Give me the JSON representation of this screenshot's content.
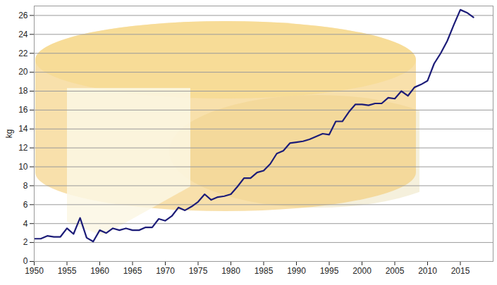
{
  "chart_data": {
    "type": "line",
    "y_label": "kg",
    "x": [
      1950,
      1951,
      1952,
      1953,
      1954,
      1955,
      1956,
      1957,
      1958,
      1959,
      1960,
      1961,
      1962,
      1963,
      1964,
      1965,
      1966,
      1967,
      1968,
      1969,
      1970,
      1971,
      1972,
      1973,
      1974,
      1975,
      1976,
      1977,
      1978,
      1979,
      1980,
      1981,
      1982,
      1983,
      1984,
      1985,
      1986,
      1987,
      1988,
      1989,
      1990,
      1991,
      1992,
      1993,
      1994,
      1995,
      1996,
      1997,
      1998,
      1999,
      2000,
      2001,
      2002,
      2003,
      2004,
      2005,
      2006,
      2007,
      2008,
      2009,
      2010,
      2011,
      2012,
      2013,
      2014,
      2015,
      2016,
      2017
    ],
    "values": [
      2.4,
      2.4,
      2.7,
      2.6,
      2.6,
      3.5,
      2.9,
      4.6,
      2.5,
      2.1,
      3.3,
      3.0,
      3.5,
      3.3,
      3.5,
      3.3,
      3.3,
      3.6,
      3.6,
      4.5,
      4.3,
      4.8,
      5.7,
      5.4,
      5.8,
      6.3,
      7.1,
      6.5,
      6.8,
      6.9,
      7.1,
      7.9,
      8.8,
      8.8,
      9.4,
      9.6,
      10.3,
      11.4,
      11.7,
      12.5,
      12.6,
      12.7,
      12.9,
      13.2,
      13.5,
      13.4,
      14.8,
      14.8,
      15.8,
      16.6,
      16.6,
      16.5,
      16.7,
      16.7,
      17.3,
      17.2,
      18.0,
      17.5,
      18.4,
      18.7,
      19.1,
      20.9,
      22.0,
      23.3,
      25.0,
      26.6,
      26.3,
      25.8
    ],
    "color": "#1c1c78",
    "xlim": [
      1950,
      2020
    ],
    "xticks": [
      1950,
      1955,
      1960,
      1965,
      1970,
      1975,
      1980,
      1985,
      1990,
      1995,
      2000,
      2005,
      2010,
      2015
    ],
    "ylim": [
      0,
      27
    ],
    "yticks": [
      0,
      2,
      4,
      6,
      8,
      10,
      12,
      14,
      16,
      18,
      20,
      22,
      24,
      26
    ],
    "grid": true
  }
}
